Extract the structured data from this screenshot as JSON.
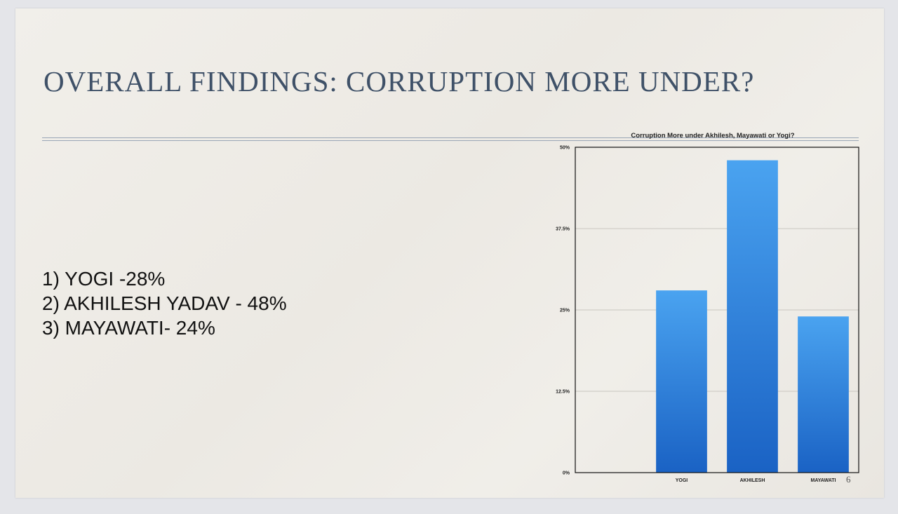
{
  "slide": {
    "title": "OVERALL FINDINGS: CORRUPTION MORE UNDER?",
    "findings": [
      "1) YOGI -28%",
      "2) AKHILESH YADAV - 48%",
      "3) MAYAWATI- 24%"
    ],
    "page_number": "6"
  },
  "colors": {
    "title": "#3f5168",
    "bar_top": "#4aa3f0",
    "bar_bottom": "#1a62c4"
  },
  "chart_data": {
    "type": "bar",
    "title": "Corruption More under Akhilesh, Mayawati or Yogi?",
    "categories": [
      "YOGI",
      "AKHILESH",
      "MAYAWATI"
    ],
    "values": [
      28,
      48,
      24
    ],
    "ylim": [
      0,
      50
    ],
    "yticks": [
      0,
      12.5,
      25,
      37.5,
      50
    ],
    "ytick_labels": [
      "0%",
      "12.5%",
      "25%",
      "37.5%",
      "50%"
    ],
    "grid": true,
    "legend": "none"
  }
}
